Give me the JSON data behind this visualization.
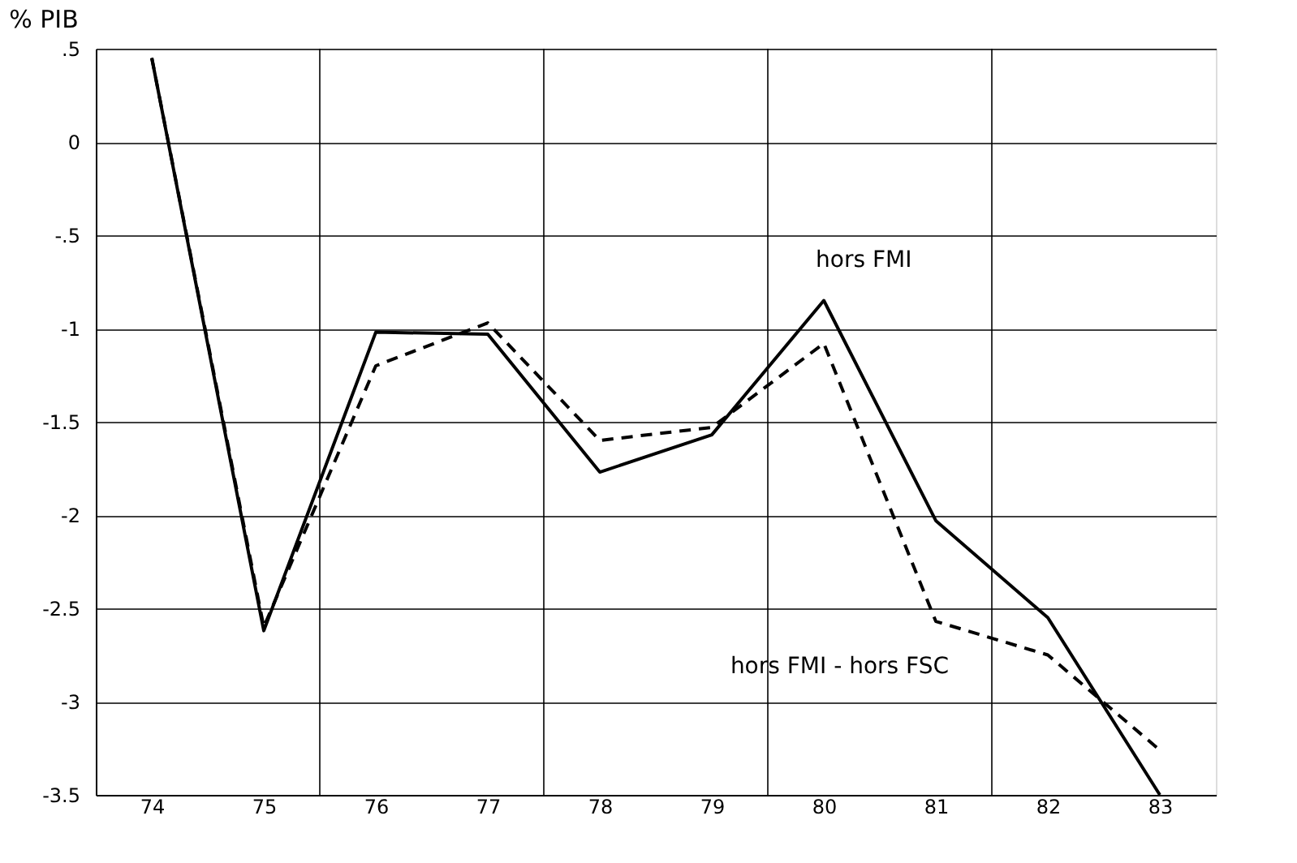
{
  "chart_data": {
    "type": "line",
    "ylabel": "% PIB",
    "x": [
      74,
      75,
      76,
      77,
      78,
      79,
      80,
      81,
      82,
      83
    ],
    "series": [
      {
        "name": "hors FMI",
        "color": "#000000",
        "line_style": "solid",
        "values": [
          0.45,
          -2.62,
          -1.02,
          -1.03,
          -1.77,
          -1.57,
          -0.85,
          -2.03,
          -2.55,
          -3.5
        ]
      },
      {
        "name": "hors FMI - hors FSC",
        "color": "#000000",
        "line_style": "dashed",
        "values": [
          0.45,
          -2.6,
          -1.2,
          -0.97,
          -1.6,
          -1.53,
          -1.08,
          -2.57,
          -2.75,
          -3.26
        ]
      }
    ],
    "xlim": [
      73.5,
      83.5
    ],
    "xticks": [
      74,
      75,
      76,
      77,
      78,
      79,
      80,
      81,
      82,
      83,
      {
        "value": 75.5,
        "label": null
      },
      {
        "value": 77.5,
        "label": null
      },
      {
        "value": 79.5,
        "label": null
      },
      {
        "value": 81.5,
        "label": null
      }
    ],
    "ylim": [
      -3.5,
      0.5
    ],
    "yticks": [
      {
        "value": 0.5,
        "label": ".5"
      },
      0,
      {
        "value": -0.5,
        "label": "-.5"
      },
      -1,
      -1.5,
      -2,
      -2.5,
      -3,
      -3.5
    ],
    "grid": true,
    "marker": "none",
    "legend": false
  }
}
